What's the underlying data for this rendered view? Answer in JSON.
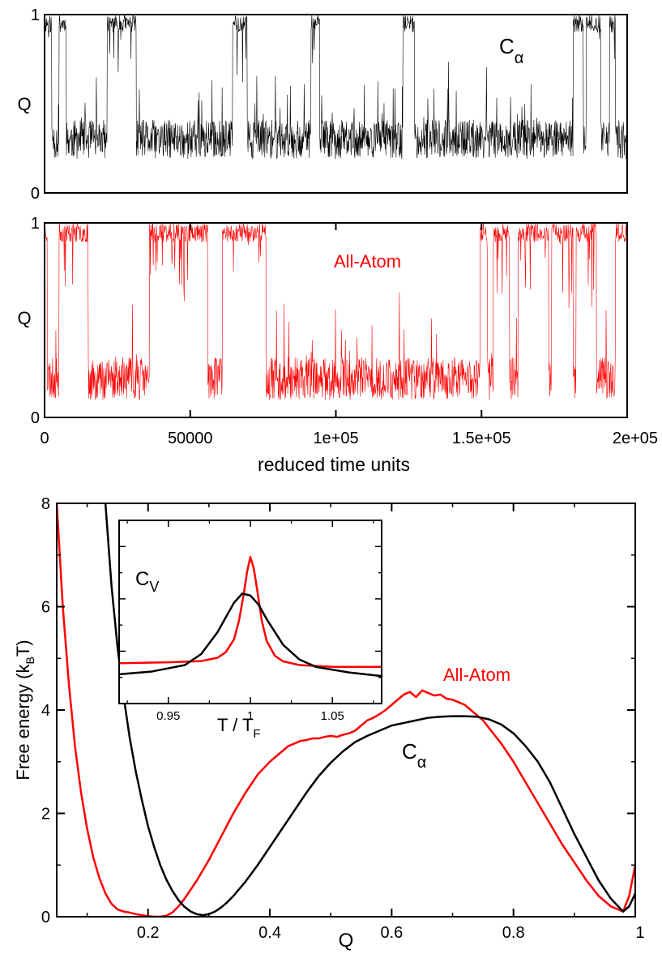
{
  "chart_data": [
    {
      "type": "line",
      "panel": "top-trajectory",
      "label": "Cα",
      "label_base": "C",
      "label_sub": "α",
      "ylabel": "Q",
      "ylim": [
        0,
        1
      ],
      "xlim": [
        0,
        200000
      ],
      "yticks": [
        {
          "v": 0,
          "label": "0"
        },
        {
          "v": 1,
          "label": "1"
        }
      ],
      "color": "#000000",
      "seed": 11,
      "segments": [
        {
          "x0": 0,
          "x1": 2500,
          "state": "folded"
        },
        {
          "x0": 2500,
          "x1": 5000,
          "state": "unfolded"
        },
        {
          "x0": 5000,
          "x1": 7500,
          "state": "folded"
        },
        {
          "x0": 7500,
          "x1": 21500,
          "state": "unfolded"
        },
        {
          "x0": 21500,
          "x1": 31500,
          "state": "folded"
        },
        {
          "x0": 31500,
          "x1": 64500,
          "state": "unfolded"
        },
        {
          "x0": 64500,
          "x1": 69500,
          "state": "folded"
        },
        {
          "x0": 69500,
          "x1": 91500,
          "state": "unfolded"
        },
        {
          "x0": 91500,
          "x1": 94500,
          "state": "folded"
        },
        {
          "x0": 94500,
          "x1": 123000,
          "state": "unfolded"
        },
        {
          "x0": 123000,
          "x1": 127000,
          "state": "folded"
        },
        {
          "x0": 127000,
          "x1": 181500,
          "state": "unfolded"
        },
        {
          "x0": 181500,
          "x1": 185000,
          "state": "folded"
        },
        {
          "x0": 185000,
          "x1": 186000,
          "state": "unfolded"
        },
        {
          "x0": 186000,
          "x1": 191000,
          "state": "folded"
        },
        {
          "x0": 191000,
          "x1": 194000,
          "state": "unfolded"
        },
        {
          "x0": 194000,
          "x1": 196000,
          "state": "folded"
        },
        {
          "x0": 196000,
          "x1": 200000,
          "state": "unfolded"
        }
      ],
      "unfolded_mean_q": 0.3,
      "folded_mean_q": 0.95
    },
    {
      "type": "line",
      "panel": "middle-trajectory",
      "label": "All-Atom",
      "ylabel": "Q",
      "xlabel": "reduced time units",
      "ylim": [
        0,
        1
      ],
      "xlim": [
        0,
        200000
      ],
      "xticks": [
        {
          "v": 0,
          "label": "0"
        },
        {
          "v": 50000,
          "label": "50000"
        },
        {
          "v": 100000,
          "label": "1e+05"
        },
        {
          "v": 150000,
          "label": "1.5e+05"
        },
        {
          "v": 200000,
          "label": "2e+05"
        }
      ],
      "yticks": [
        {
          "v": 0,
          "label": "0"
        },
        {
          "v": 1,
          "label": "1"
        }
      ],
      "color": "#ff0000",
      "seed": 23,
      "segments": [
        {
          "x0": 0,
          "x1": 1000,
          "state": "folded"
        },
        {
          "x0": 1000,
          "x1": 5000,
          "state": "unfolded"
        },
        {
          "x0": 5000,
          "x1": 15000,
          "state": "folded"
        },
        {
          "x0": 15000,
          "x1": 36000,
          "state": "unfolded"
        },
        {
          "x0": 36000,
          "x1": 56000,
          "state": "folded"
        },
        {
          "x0": 56000,
          "x1": 61000,
          "state": "unfolded"
        },
        {
          "x0": 61000,
          "x1": 76000,
          "state": "folded"
        },
        {
          "x0": 76000,
          "x1": 149500,
          "state": "unfolded"
        },
        {
          "x0": 149500,
          "x1": 152000,
          "state": "folded"
        },
        {
          "x0": 152000,
          "x1": 154000,
          "state": "unfolded"
        },
        {
          "x0": 154000,
          "x1": 159500,
          "state": "folded"
        },
        {
          "x0": 159500,
          "x1": 162500,
          "state": "unfolded"
        },
        {
          "x0": 162500,
          "x1": 173000,
          "state": "folded"
        },
        {
          "x0": 173000,
          "x1": 174000,
          "state": "unfolded"
        },
        {
          "x0": 174000,
          "x1": 181500,
          "state": "folded"
        },
        {
          "x0": 181500,
          "x1": 182500,
          "state": "unfolded"
        },
        {
          "x0": 182500,
          "x1": 189500,
          "state": "folded"
        },
        {
          "x0": 189500,
          "x1": 196000,
          "state": "unfolded"
        },
        {
          "x0": 196000,
          "x1": 200000,
          "state": "folded"
        }
      ],
      "unfolded_mean_q": 0.2,
      "folded_mean_q": 0.95
    },
    {
      "type": "line",
      "panel": "free-energy",
      "xlabel": "Q",
      "ylabel_base": "Free energy (k",
      "ylabel_sub": "B",
      "ylabel_tail": "T)",
      "xlim": [
        0.05,
        1.0
      ],
      "ylim": [
        0,
        8
      ],
      "xticks": [
        {
          "v": 0.2,
          "label": "0.2"
        },
        {
          "v": 0.4,
          "label": "0.4"
        },
        {
          "v": 0.6,
          "label": "0.6"
        },
        {
          "v": 0.8,
          "label": "0.8"
        },
        {
          "v": 1.0,
          "label": "1"
        }
      ],
      "yticks": [
        {
          "v": 0,
          "label": "0"
        },
        {
          "v": 2,
          "label": "2"
        },
        {
          "v": 4,
          "label": "4"
        },
        {
          "v": 6,
          "label": "6"
        },
        {
          "v": 8,
          "label": "8"
        }
      ],
      "series": [
        {
          "name": "All-Atom",
          "color": "#ff0000",
          "x": [
            0.05,
            0.06,
            0.07,
            0.08,
            0.09,
            0.1,
            0.11,
            0.12,
            0.13,
            0.14,
            0.15,
            0.16,
            0.17,
            0.18,
            0.19,
            0.2,
            0.21,
            0.22,
            0.23,
            0.24,
            0.25,
            0.26,
            0.28,
            0.3,
            0.32,
            0.34,
            0.36,
            0.38,
            0.4,
            0.41,
            0.42,
            0.43,
            0.44,
            0.45,
            0.46,
            0.47,
            0.48,
            0.49,
            0.5,
            0.51,
            0.52,
            0.53,
            0.54,
            0.55,
            0.56,
            0.57,
            0.58,
            0.59,
            0.6,
            0.61,
            0.62,
            0.63,
            0.64,
            0.65,
            0.66,
            0.67,
            0.68,
            0.69,
            0.7,
            0.71,
            0.72,
            0.73,
            0.74,
            0.75,
            0.76,
            0.77,
            0.78,
            0.8,
            0.82,
            0.84,
            0.86,
            0.88,
            0.9,
            0.92,
            0.94,
            0.96,
            0.98,
            0.99,
            1.0
          ],
          "y": [
            8.0,
            6.0,
            4.5,
            3.3,
            2.4,
            1.7,
            1.15,
            0.75,
            0.45,
            0.25,
            0.14,
            0.1,
            0.08,
            0.05,
            0.03,
            0.01,
            0.0,
            0.0,
            0.02,
            0.08,
            0.2,
            0.35,
            0.7,
            1.1,
            1.55,
            2.0,
            2.4,
            2.75,
            3.0,
            3.1,
            3.2,
            3.3,
            3.35,
            3.4,
            3.42,
            3.45,
            3.45,
            3.48,
            3.5,
            3.48,
            3.52,
            3.55,
            3.6,
            3.7,
            3.8,
            3.85,
            3.92,
            4.0,
            4.1,
            4.2,
            4.3,
            4.35,
            4.25,
            4.38,
            4.33,
            4.28,
            4.3,
            4.22,
            4.2,
            4.15,
            4.1,
            4.0,
            3.9,
            3.8,
            3.65,
            3.5,
            3.35,
            3.0,
            2.6,
            2.2,
            1.8,
            1.4,
            1.05,
            0.7,
            0.4,
            0.2,
            0.1,
            0.4,
            1.0
          ]
        },
        {
          "name": "Cα",
          "color": "#000000",
          "x": [
            0.13,
            0.135,
            0.14,
            0.15,
            0.16,
            0.17,
            0.18,
            0.19,
            0.2,
            0.21,
            0.22,
            0.23,
            0.24,
            0.25,
            0.26,
            0.27,
            0.28,
            0.29,
            0.3,
            0.31,
            0.32,
            0.33,
            0.34,
            0.36,
            0.38,
            0.4,
            0.42,
            0.44,
            0.46,
            0.48,
            0.5,
            0.52,
            0.54,
            0.56,
            0.58,
            0.6,
            0.62,
            0.64,
            0.66,
            0.68,
            0.7,
            0.72,
            0.74,
            0.76,
            0.78,
            0.8,
            0.82,
            0.84,
            0.86,
            0.88,
            0.9,
            0.92,
            0.94,
            0.96,
            0.98,
            0.99,
            1.0
          ],
          "y": [
            8.0,
            7.2,
            6.4,
            5.2,
            4.25,
            3.45,
            2.8,
            2.25,
            1.75,
            1.35,
            1.0,
            0.72,
            0.5,
            0.32,
            0.19,
            0.1,
            0.05,
            0.03,
            0.05,
            0.1,
            0.18,
            0.28,
            0.4,
            0.68,
            1.0,
            1.35,
            1.7,
            2.05,
            2.4,
            2.72,
            2.98,
            3.2,
            3.38,
            3.5,
            3.6,
            3.7,
            3.75,
            3.8,
            3.85,
            3.87,
            3.88,
            3.88,
            3.87,
            3.82,
            3.72,
            3.55,
            3.3,
            3.0,
            2.6,
            2.1,
            1.6,
            1.15,
            0.7,
            0.35,
            0.1,
            0.2,
            0.45
          ]
        }
      ],
      "annotations": [
        {
          "text": "All-Atom",
          "color": "#ff0000"
        },
        {
          "text": "Cα",
          "base": "C",
          "sub": "α",
          "color": "#000000"
        }
      ]
    },
    {
      "type": "line",
      "panel": "heat-capacity-inset",
      "label_base": "C",
      "label_sub": "V",
      "xlabel_base": "T / T",
      "xlabel_sub": "F",
      "xlim": [
        0.92,
        1.08
      ],
      "ylim": [
        0,
        1
      ],
      "xticks": [
        {
          "v": 0.95,
          "label": "0.95"
        },
        {
          "v": 1.0,
          "label": "1"
        },
        {
          "v": 1.05,
          "label": "1.05"
        }
      ],
      "series": [
        {
          "name": "All-Atom",
          "color": "#ff0000",
          "x": [
            0.92,
            0.95,
            0.97,
            0.98,
            0.985,
            0.99,
            0.993,
            0.996,
            0.998,
            1.0,
            1.002,
            1.004,
            1.007,
            1.01,
            1.015,
            1.02,
            1.03,
            1.05,
            1.08
          ],
          "y": [
            0.22,
            0.225,
            0.232,
            0.25,
            0.28,
            0.35,
            0.45,
            0.6,
            0.72,
            0.8,
            0.74,
            0.63,
            0.45,
            0.34,
            0.26,
            0.23,
            0.21,
            0.2,
            0.2
          ]
        },
        {
          "name": "Cα",
          "color": "#000000",
          "x": [
            0.92,
            0.94,
            0.96,
            0.97,
            0.98,
            0.985,
            0.99,
            0.995,
            1.0,
            1.005,
            1.01,
            1.02,
            1.03,
            1.04,
            1.06,
            1.08
          ],
          "y": [
            0.16,
            0.175,
            0.21,
            0.27,
            0.39,
            0.47,
            0.55,
            0.6,
            0.59,
            0.54,
            0.46,
            0.32,
            0.24,
            0.2,
            0.17,
            0.15
          ]
        }
      ]
    }
  ]
}
